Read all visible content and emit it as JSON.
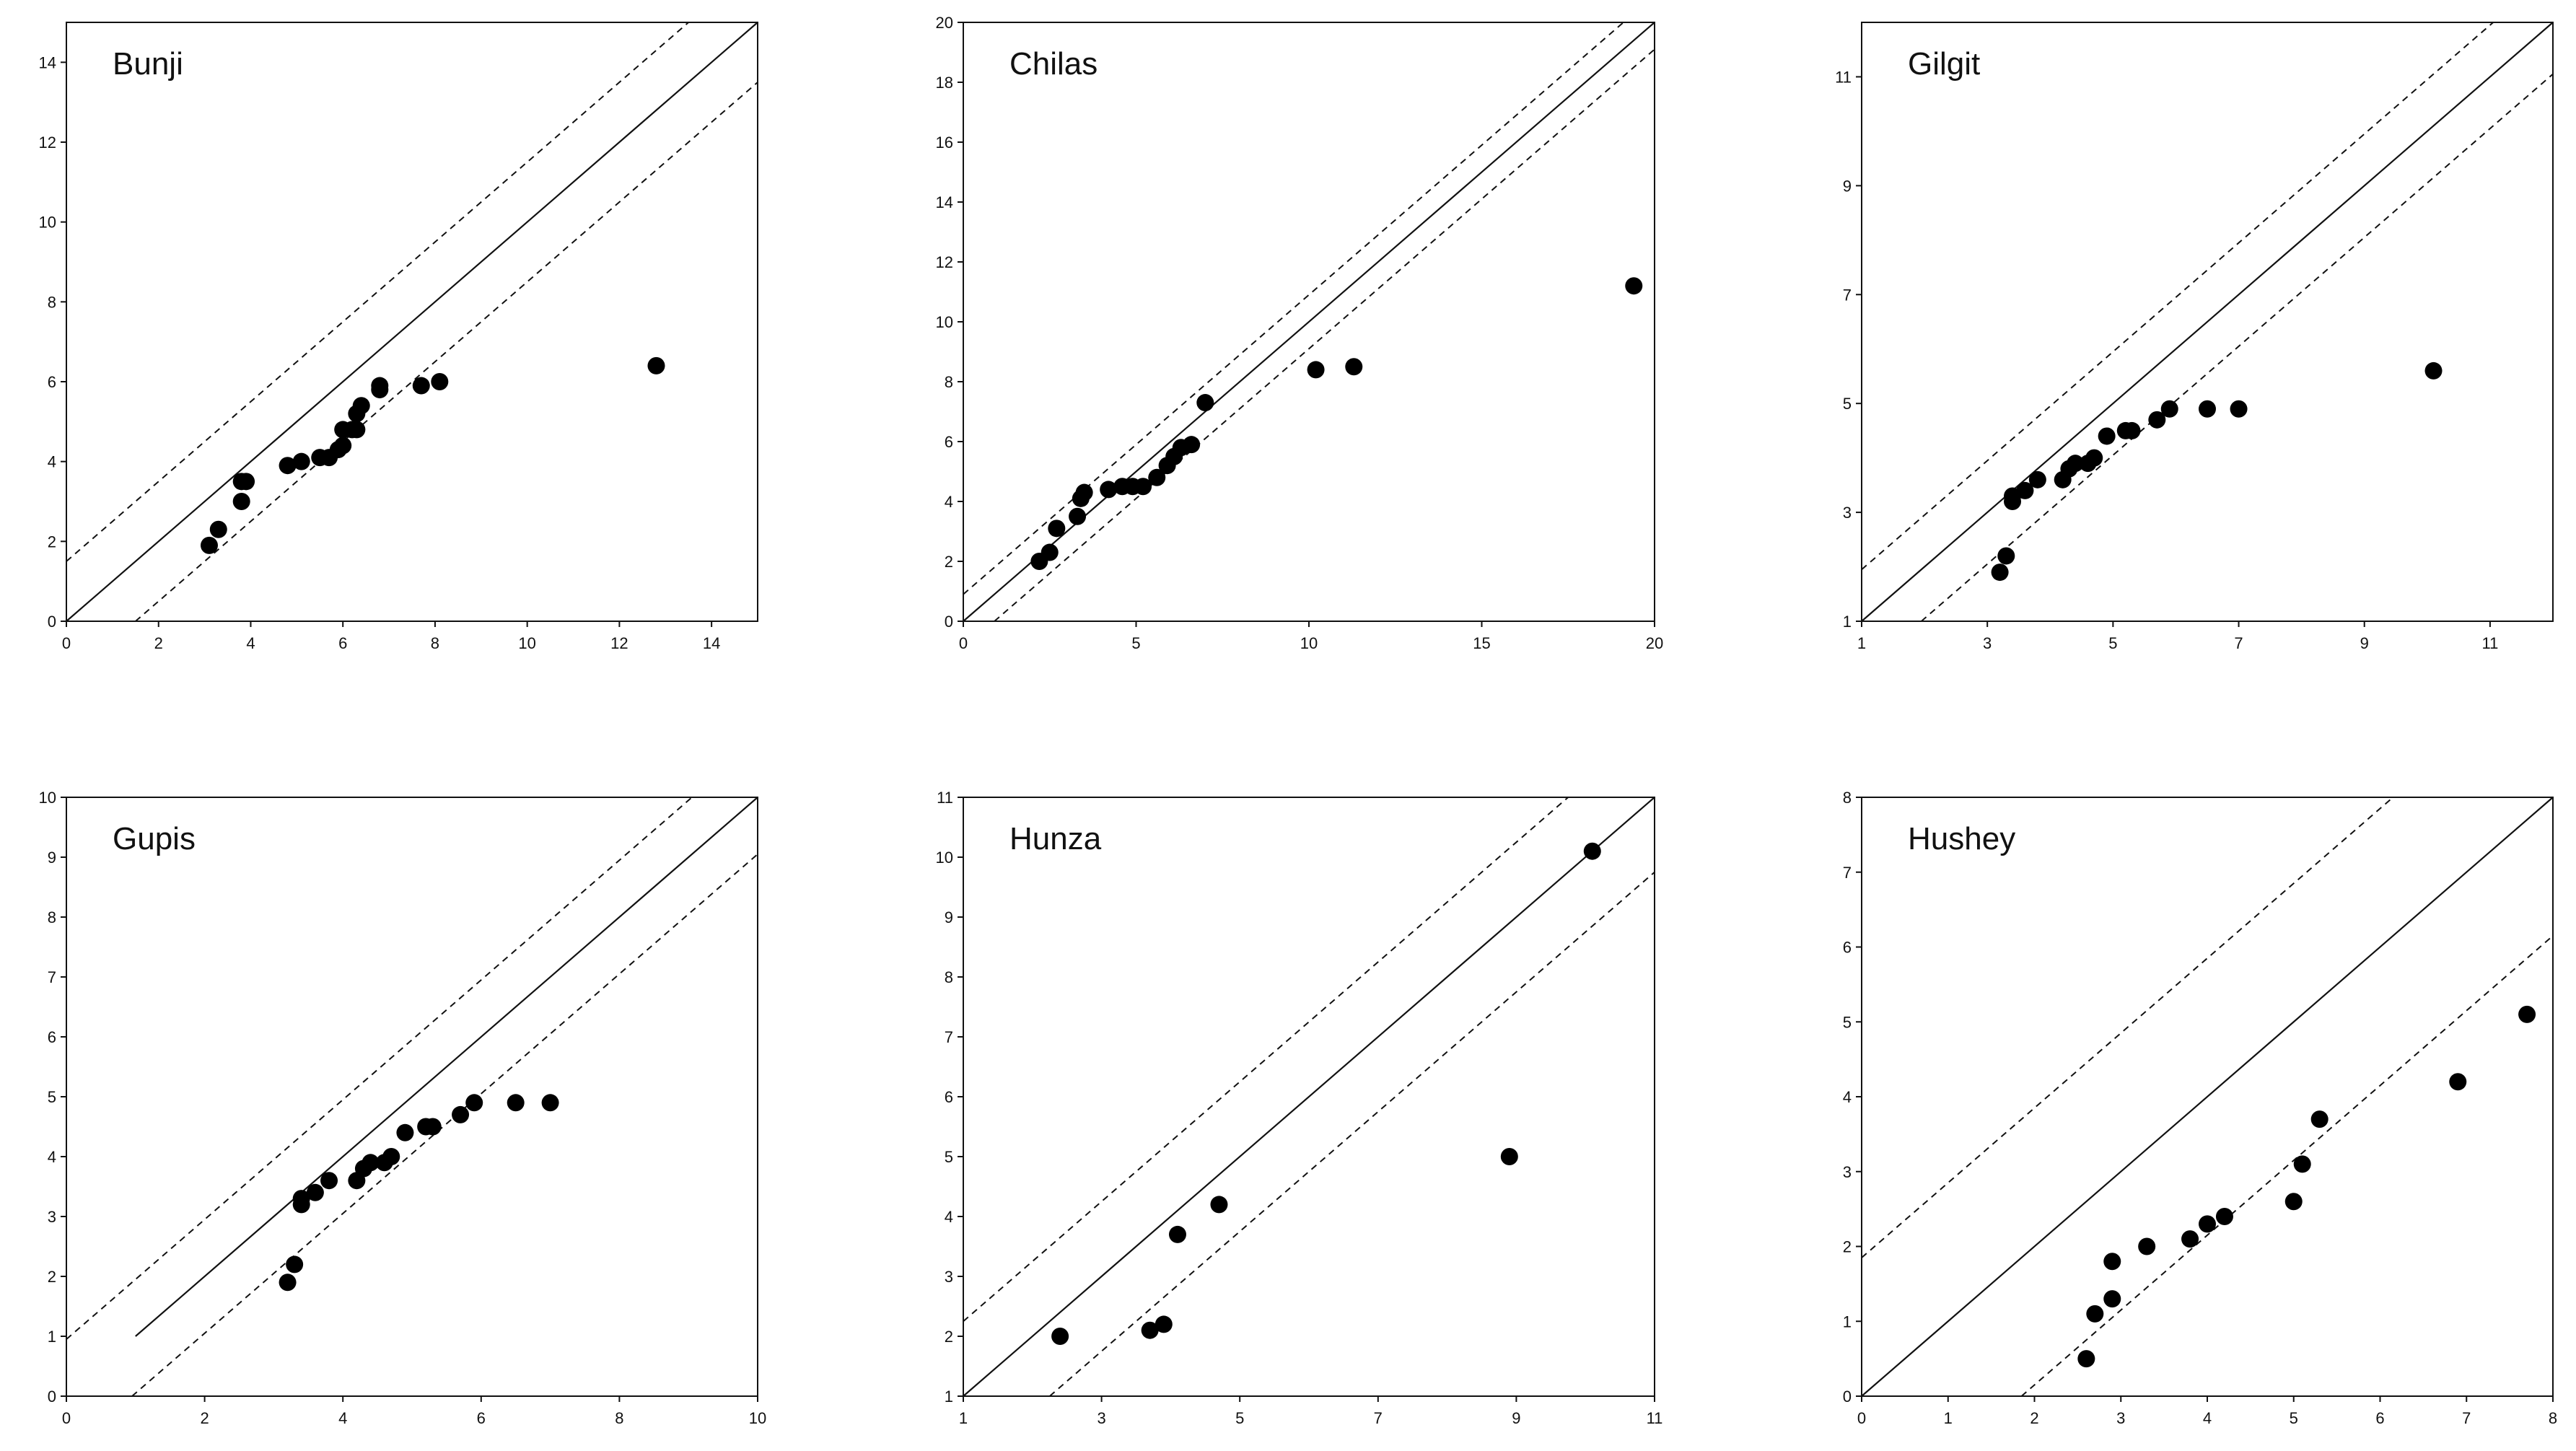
{
  "chart_data": [
    {
      "type": "scatter",
      "title": "Bunji",
      "xlim": [
        0,
        15
      ],
      "ylim": [
        0,
        15
      ],
      "xticks": [
        0,
        2,
        4,
        6,
        8,
        10,
        12,
        14
      ],
      "yticks": [
        0,
        2,
        4,
        6,
        8,
        10,
        12,
        14
      ],
      "reference_line": {
        "slope": 1,
        "intercept": 0,
        "x_range": [
          0,
          15
        ]
      },
      "band_offset": 1.5,
      "series": [
        {
          "x": [
            3.1,
            3.3,
            3.8,
            3.8,
            3.9,
            4.8,
            5.1,
            5.5,
            5.7,
            5.9,
            6.0,
            6.0,
            6.2,
            6.3,
            6.3,
            6.4,
            6.8,
            6.8,
            7.7,
            8.1,
            12.8
          ],
          "y": [
            1.9,
            2.3,
            3.0,
            3.5,
            3.5,
            3.9,
            4.0,
            4.1,
            4.1,
            4.3,
            4.4,
            4.8,
            4.8,
            4.8,
            5.2,
            5.4,
            5.8,
            5.9,
            5.9,
            6.0,
            6.4
          ]
        }
      ]
    },
    {
      "type": "scatter",
      "title": "Chilas",
      "xlim": [
        0,
        20
      ],
      "ylim": [
        0,
        20
      ],
      "xticks": [
        0,
        5,
        10,
        15,
        20
      ],
      "yticks": [
        0,
        2,
        4,
        6,
        8,
        10,
        12,
        14,
        16,
        18,
        20
      ],
      "reference_line": {
        "slope": 1,
        "intercept": 0,
        "x_range": [
          0,
          20
        ]
      },
      "band_offset": 0.9,
      "series": [
        {
          "x": [
            2.2,
            2.5,
            2.7,
            3.3,
            3.4,
            3.5,
            4.2,
            4.6,
            4.9,
            5.2,
            5.6,
            5.9,
            6.1,
            6.3,
            6.6,
            7.0,
            10.2,
            11.3,
            19.4
          ],
          "y": [
            2.0,
            2.3,
            3.1,
            3.5,
            4.1,
            4.3,
            4.4,
            4.5,
            4.5,
            4.5,
            4.8,
            5.2,
            5.5,
            5.8,
            5.9,
            7.3,
            8.4,
            8.5,
            11.2
          ]
        }
      ]
    },
    {
      "type": "scatter",
      "title": "Gilgit",
      "xlim": [
        1,
        12
      ],
      "ylim": [
        1,
        12
      ],
      "xticks": [
        1,
        3,
        5,
        7,
        9,
        11
      ],
      "yticks": [
        1,
        3,
        5,
        7,
        9,
        11
      ],
      "reference_line": {
        "slope": 1,
        "intercept": 0,
        "x_range": [
          1,
          12
        ]
      },
      "band_offset": 0.95,
      "series": [
        {
          "x": [
            3.2,
            3.3,
            3.4,
            3.4,
            3.6,
            3.8,
            4.2,
            4.3,
            4.4,
            4.6,
            4.7,
            4.9,
            5.2,
            5.3,
            5.7,
            5.9,
            6.5,
            7.0,
            10.1
          ],
          "y": [
            1.9,
            2.2,
            3.2,
            3.3,
            3.4,
            3.6,
            3.6,
            3.8,
            3.9,
            3.9,
            4.0,
            4.4,
            4.5,
            4.5,
            4.7,
            4.9,
            4.9,
            4.9,
            5.6
          ]
        }
      ]
    },
    {
      "type": "scatter",
      "title": "Gupis",
      "xlim": [
        0,
        10
      ],
      "ylim": [
        0,
        10
      ],
      "xticks": [
        0,
        2,
        4,
        6,
        8,
        10
      ],
      "yticks": [
        0,
        1,
        2,
        3,
        4,
        5,
        6,
        7,
        8,
        9,
        10
      ],
      "reference_line": {
        "slope": 1,
        "intercept": 0,
        "x_range": [
          1,
          10
        ]
      },
      "band_offset": 0.95,
      "series": [
        {
          "x": [
            3.2,
            3.3,
            3.4,
            3.4,
            3.6,
            3.8,
            4.2,
            4.3,
            4.4,
            4.6,
            4.7,
            4.9,
            5.2,
            5.3,
            5.7,
            5.9,
            6.5,
            7.0
          ],
          "y": [
            1.9,
            2.2,
            3.2,
            3.3,
            3.4,
            3.6,
            3.6,
            3.8,
            3.9,
            3.9,
            4.0,
            4.4,
            4.5,
            4.5,
            4.7,
            4.9,
            4.9,
            4.9
          ]
        }
      ]
    },
    {
      "type": "scatter",
      "title": "Hunza",
      "xlim": [
        1,
        11
      ],
      "ylim": [
        1,
        11
      ],
      "xticks": [
        1,
        3,
        5,
        7,
        9,
        11
      ],
      "yticks": [
        1,
        2,
        3,
        4,
        5,
        6,
        7,
        8,
        9,
        10,
        11
      ],
      "reference_line": {
        "slope": 1,
        "intercept": 0,
        "x_range": [
          1,
          11
        ]
      },
      "band_offset": 1.25,
      "series": [
        {
          "x": [
            2.4,
            3.7,
            3.9,
            4.1,
            4.7,
            8.9,
            10.1
          ],
          "y": [
            2.0,
            2.1,
            2.2,
            3.7,
            4.2,
            5.0,
            10.1
          ]
        }
      ]
    },
    {
      "type": "scatter",
      "title": "Hushey",
      "xlim": [
        0,
        8
      ],
      "ylim": [
        0,
        8
      ],
      "xticks": [
        0,
        1,
        2,
        3,
        4,
        5,
        6,
        7,
        8
      ],
      "yticks": [
        0,
        1,
        2,
        3,
        4,
        5,
        6,
        7,
        8
      ],
      "reference_line": {
        "slope": 1,
        "intercept": 0,
        "x_range": [
          0,
          8
        ]
      },
      "band_offset": 1.85,
      "series": [
        {
          "x": [
            2.6,
            2.7,
            2.9,
            2.9,
            3.3,
            3.8,
            4.0,
            4.2,
            5.0,
            5.1,
            5.3,
            6.9,
            7.7
          ],
          "y": [
            0.5,
            1.1,
            1.3,
            1.8,
            2.0,
            2.1,
            2.3,
            2.4,
            2.6,
            3.1,
            3.7,
            4.2,
            5.1
          ]
        }
      ]
    }
  ]
}
